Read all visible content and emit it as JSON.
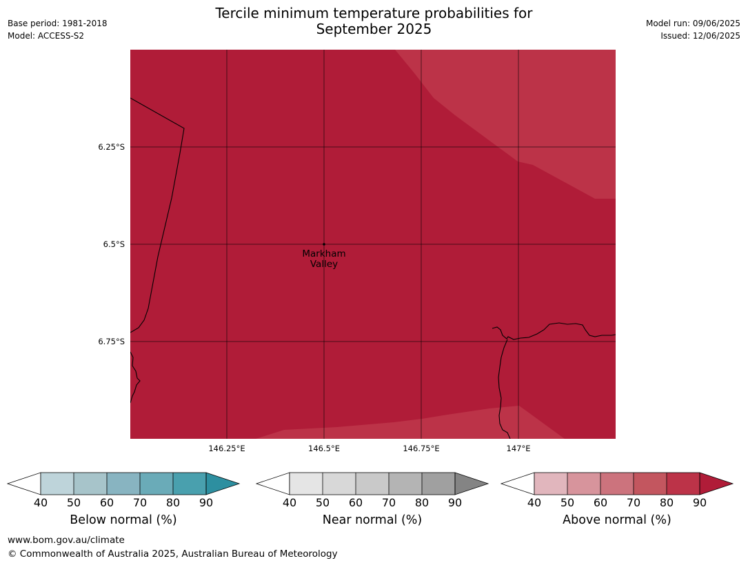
{
  "title_line1": "Tercile minimum temperature probabilities for",
  "title_line2": "September 2025",
  "base_period": "Base period: 1981-2018",
  "model": "Model: ACCESS-S2",
  "model_run": "Model run: 09/06/2025",
  "issued": "Issued: 12/06/2025",
  "lat_labels": [
    "6.25°S",
    "6.5°S",
    "6.75°S"
  ],
  "lon_labels": [
    "146.25°E",
    "146.5°E",
    "146.75°E",
    "147°E"
  ],
  "place": {
    "line1": "Markham",
    "line2": "Valley"
  },
  "colorbars": [
    {
      "label": "Below normal (%)",
      "ticks": [
        "40",
        "50",
        "60",
        "70",
        "80",
        "90"
      ],
      "colors": [
        "#bed4da",
        "#a7c4ca",
        "#88b4c1",
        "#6aabb8",
        "#49a0ae",
        "#2d8fa0"
      ]
    },
    {
      "label": "Near normal (%)",
      "ticks": [
        "40",
        "50",
        "60",
        "70",
        "80",
        "90"
      ],
      "colors": [
        "#e5e5e5",
        "#d8d8d8",
        "#c9c9c9",
        "#b4b4b4",
        "#a0a0a0",
        "#848484"
      ]
    },
    {
      "label": "Above normal (%)",
      "ticks": [
        "40",
        "50",
        "60",
        "70",
        "80",
        "90"
      ],
      "colors": [
        "#e1b6bd",
        "#d7949c",
        "#cc737d",
        "#c3565f",
        "#bc3348",
        "#b01c38"
      ]
    }
  ],
  "map_colors": {
    "dominant": "#b01c38",
    "lighter": "#bc3348"
  },
  "footer_url": "www.bom.gov.au/climate",
  "footer_copyright": "© Commonwealth of Australia 2025, Australian Bureau of Meteorology"
}
